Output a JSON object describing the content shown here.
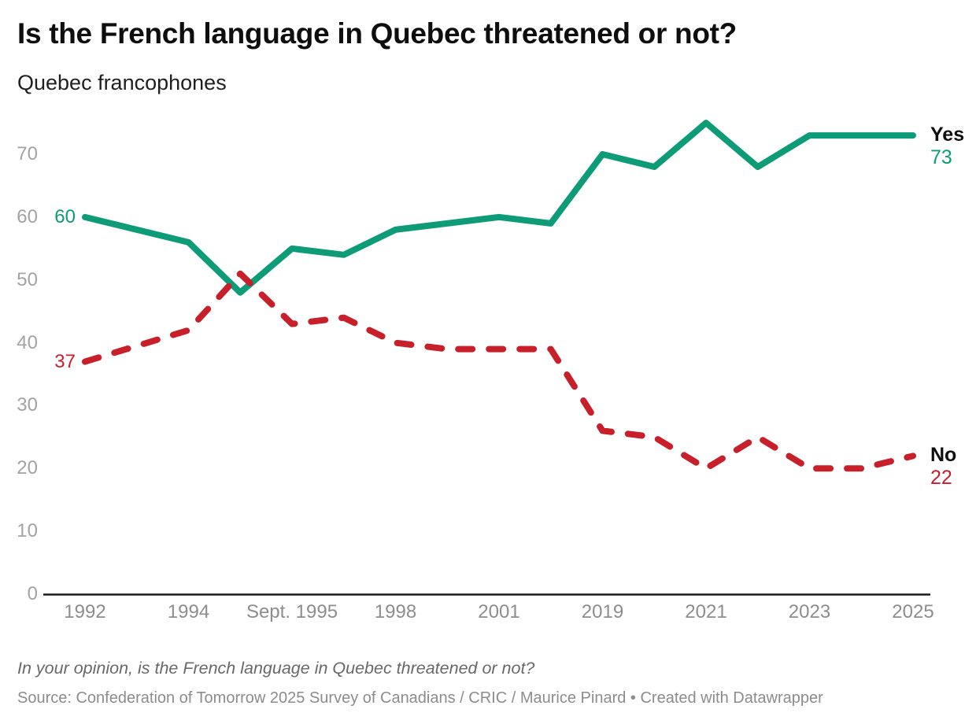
{
  "header": {
    "title": "Is the French language in Quebec threatened or not?",
    "subtitle": "Quebec francophones"
  },
  "chart_data": {
    "type": "line",
    "title": "Is the French language in Quebec threatened or not?",
    "subtitle": "Quebec francophones",
    "x_axis": {
      "tick_labels": [
        "1992",
        "1994",
        "Sept. 1995",
        "1998",
        "2001",
        "2019",
        "2021",
        "2023",
        "2025"
      ],
      "tick_slots": [
        0,
        2,
        4,
        6,
        8,
        10,
        12,
        14,
        16
      ],
      "total_slots": 16
    },
    "y_axis": {
      "ticks": [
        0,
        10,
        20,
        30,
        40,
        50,
        60,
        70
      ],
      "range": [
        0,
        78
      ],
      "gridlines": false
    },
    "legend_position": "line-end-labels",
    "series": [
      {
        "name": "Yes",
        "color": "#0d9c77",
        "line_style": "solid",
        "start_value_label": "60",
        "end_value_label": "73",
        "points": [
          [
            0,
            60
          ],
          [
            2,
            56
          ],
          [
            3,
            48
          ],
          [
            4,
            55
          ],
          [
            5,
            54
          ],
          [
            6,
            58
          ],
          [
            7,
            59
          ],
          [
            8,
            60
          ],
          [
            9,
            59
          ],
          [
            10,
            70
          ],
          [
            11,
            68
          ],
          [
            12,
            75
          ],
          [
            13,
            68
          ],
          [
            14,
            73
          ],
          [
            15,
            73
          ],
          [
            16,
            73
          ]
        ]
      },
      {
        "name": "No",
        "color": "#c8202b",
        "line_style": "dashed",
        "start_value_label": "37",
        "end_value_label": "22",
        "points": [
          [
            0,
            37
          ],
          [
            2,
            42
          ],
          [
            3,
            51
          ],
          [
            4,
            43
          ],
          [
            5,
            44
          ],
          [
            6,
            40
          ],
          [
            7,
            39
          ],
          [
            8,
            39
          ],
          [
            9,
            39
          ],
          [
            10,
            26
          ],
          [
            11,
            25
          ],
          [
            12,
            20
          ],
          [
            13,
            25
          ],
          [
            14,
            20
          ],
          [
            15,
            20
          ],
          [
            16,
            22
          ]
        ]
      }
    ]
  },
  "footer": {
    "note": "In your opinion, is the French language in Quebec threatened or not?",
    "source": "Source: Confederation of Tomorrow 2025 Survey of Canadians / CRIC / Maurice Pinard • Created with Datawrapper"
  }
}
